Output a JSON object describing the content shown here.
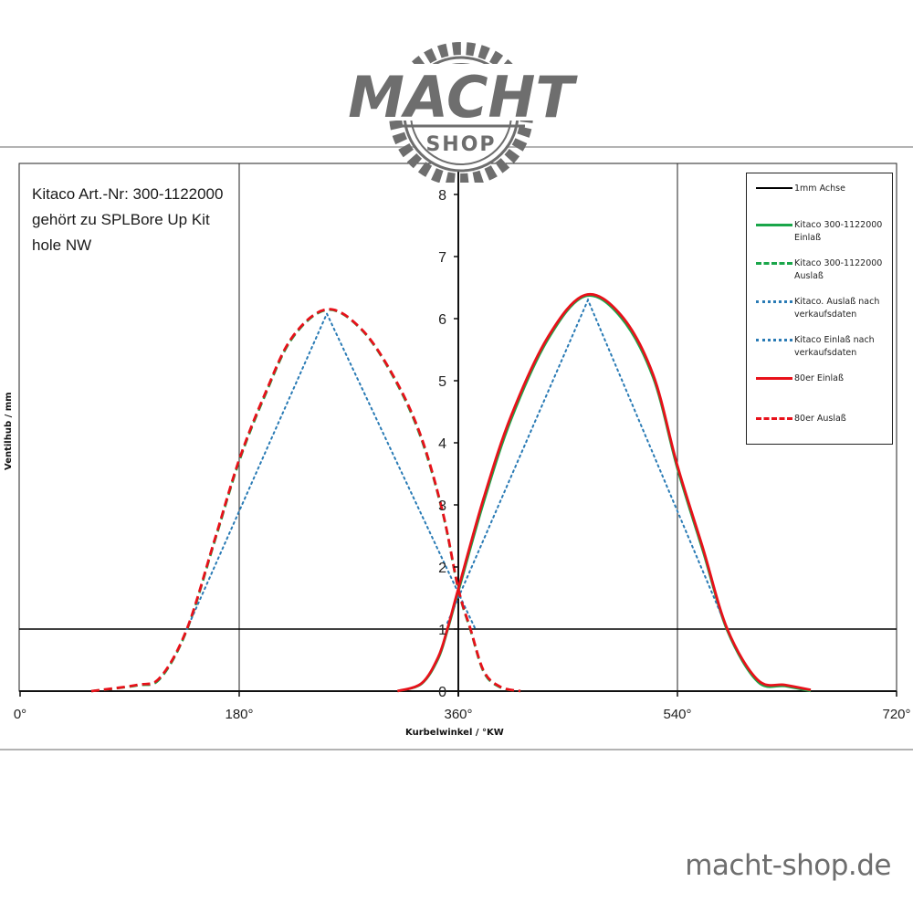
{
  "brand": {
    "logo_text": "MACHT",
    "logo_subtext": "SHOP",
    "logo_color": "#6e6e6e",
    "watermark": "macht-shop.de"
  },
  "note": {
    "line1": "Kitaco Art.-Nr: 300-1122000",
    "line2": "gehört zu SPLBore Up Kit",
    "line3": "hole NW"
  },
  "chart_data": {
    "type": "line",
    "title": "",
    "xlabel": "Kurbelwinkel / °KW",
    "ylabel": "Ventilhub / mm",
    "xlim": [
      0,
      720
    ],
    "ylim": [
      0,
      8.5
    ],
    "x_ticks": [
      0,
      180,
      360,
      540,
      720
    ],
    "x_tick_labels": [
      "0°",
      "180°",
      "360°",
      "540°",
      "720°"
    ],
    "y_ticks": [
      0,
      1,
      2,
      3,
      4,
      5,
      6,
      7,
      8
    ],
    "y_tick_labels": [
      "0",
      "1",
      "2",
      "3",
      "4",
      "5",
      "6",
      "7",
      "8"
    ],
    "grid": {
      "vertical_at": [
        180,
        540
      ],
      "y_axis_at": 360
    },
    "legend_position": "upper right",
    "series": [
      {
        "name": "1mm Achse",
        "color": "#000000",
        "style": "solid",
        "width": 1.6,
        "x": [
          0,
          720
        ],
        "y": [
          1,
          1
        ]
      },
      {
        "name": "Kitaco 300-1122000 Einlaß",
        "color": "#1aa64a",
        "style": "solid",
        "width": 2.5,
        "x": [
          310,
          330,
          343.5,
          351,
          360,
          381,
          403.5,
          433.5,
          464,
          493.5,
          520,
          540,
          561,
          581,
          606,
          628.5,
          649.5
        ],
        "y": [
          0,
          0.12,
          0.52,
          0.97,
          1.6,
          3.05,
          4.38,
          5.66,
          6.36,
          6.02,
          5.05,
          3.58,
          2.25,
          0.97,
          0.15,
          0.08,
          0
        ]
      },
      {
        "name": "Kitaco 300-1122000 Auslaß",
        "color": "#1aa64a",
        "style": "dashed",
        "width": 2.5,
        "x": [
          58.5,
          96,
          115,
          137,
          160,
          180,
          201,
          223.5,
          252,
          280,
          306,
          328.5,
          347,
          360,
          370,
          381,
          394.5,
          411
        ],
        "y": [
          0,
          0.09,
          0.2,
          0.98,
          2.42,
          3.7,
          4.75,
          5.68,
          6.14,
          5.83,
          5.08,
          4.12,
          2.88,
          1.63,
          0.98,
          0.3,
          0.06,
          0
        ]
      },
      {
        "name": "Kitaco. Auslaß nach verkaufsdaten",
        "color": "#2a7bb5",
        "style": "dotted",
        "width": 2,
        "x": [
          137,
          252,
          374
        ],
        "y": [
          1.0,
          6.08,
          1.0
        ]
      },
      {
        "name": "Kitaco Einlaß nach verkaufsdaten",
        "color": "#2a7bb5",
        "style": "dotted",
        "width": 2,
        "x": [
          351,
          466.5,
          581
        ],
        "y": [
          1.1,
          6.3,
          1.0
        ]
      },
      {
        "name": "80er Einlaß",
        "color": "#e8111a",
        "style": "solid",
        "width": 2.8,
        "x": [
          310,
          330,
          343.5,
          351,
          360,
          381,
          403.5,
          433.5,
          464,
          493.5,
          520,
          540,
          561,
          581,
          606,
          628.5,
          649.5
        ],
        "y": [
          0,
          0.13,
          0.55,
          1.0,
          1.65,
          3.12,
          4.44,
          5.7,
          6.38,
          6.06,
          5.1,
          3.63,
          2.3,
          1.0,
          0.18,
          0.1,
          0.02
        ]
      },
      {
        "name": "80er Auslaß",
        "color": "#e8111a",
        "style": "dashed",
        "width": 2.8,
        "x": [
          58.5,
          96,
          115,
          137,
          160,
          180,
          201,
          223.5,
          252,
          280,
          306,
          328.5,
          347,
          360,
          370,
          381,
          394.5,
          411
        ],
        "y": [
          0,
          0.1,
          0.22,
          1.0,
          2.45,
          3.73,
          4.78,
          5.7,
          6.15,
          5.84,
          5.1,
          4.15,
          2.9,
          1.65,
          1.0,
          0.32,
          0.07,
          0
        ]
      }
    ]
  },
  "legend": {
    "items": [
      {
        "label": "1mm Achse",
        "color": "#000000",
        "style": "solid"
      },
      {
        "label": "Kitaco 300-1122000 Einlaß",
        "color": "#1aa64a",
        "style": "solid"
      },
      {
        "label": "Kitaco 300-1122000 Auslaß",
        "color": "#1aa64a",
        "style": "dashed"
      },
      {
        "label": "Kitaco. Auslaß nach verkaufsdaten",
        "color": "#2a7bb5",
        "style": "dotted"
      },
      {
        "label": "Kitaco Einlaß nach verkaufsdaten",
        "color": "#2a7bb5",
        "style": "dotted"
      },
      {
        "label": "80er Einlaß",
        "color": "#e8111a",
        "style": "solid"
      },
      {
        "label": "80er Auslaß",
        "color": "#e8111a",
        "style": "dashed"
      }
    ]
  }
}
